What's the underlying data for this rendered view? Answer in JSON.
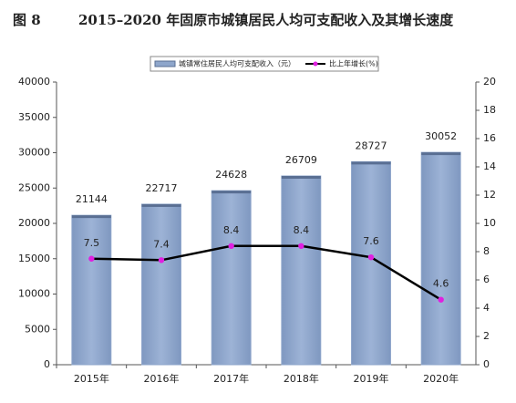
{
  "chart_data": {
    "type": "combo",
    "figure_label": "图 8",
    "title": "2015–2020 年固原市城镇居民人均可支配收入及其增长速度",
    "categories": [
      "2015年",
      "2016年",
      "2017年",
      "2018年",
      "2019年",
      "2020年"
    ],
    "series": [
      {
        "name": "城镇常住居民人均可支配收入（元）",
        "type": "bar",
        "color": "#8ea6cb",
        "values": [
          21144,
          22717,
          24628,
          26709,
          28727,
          30052
        ]
      },
      {
        "name": "比上年增长(%)",
        "type": "line",
        "color": "#000000",
        "marker_color": "#e020e0",
        "axis": "y2",
        "values": [
          7.5,
          7.4,
          8.4,
          8.4,
          7.6,
          4.6
        ]
      }
    ],
    "ylim": [
      0,
      40000
    ],
    "yticks": [
      0,
      5000,
      10000,
      15000,
      20000,
      25000,
      30000,
      35000,
      40000
    ],
    "y2lim": [
      0,
      20
    ],
    "y2ticks": [
      0,
      2,
      4,
      6,
      8,
      10,
      12,
      14,
      16,
      18,
      20
    ],
    "grid": false,
    "legend": "top"
  }
}
